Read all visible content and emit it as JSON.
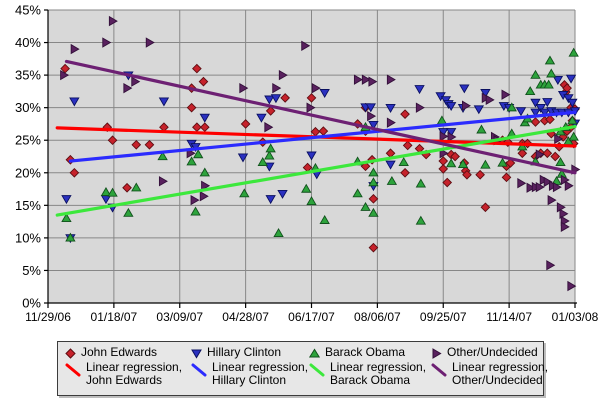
{
  "chart": {
    "plot_bg": "#d8d8d8",
    "grid_color": "#878787",
    "axis_color": "#000000",
    "label_color": "#000000"
  },
  "chart_data": {
    "type": "scatter",
    "title": "",
    "subtitle": "",
    "x_axis": {
      "label": "",
      "unit": "days since 11/29/06",
      "tick_days": [
        0,
        50,
        100,
        150,
        200,
        250,
        300,
        350,
        400
      ],
      "tick_labels": [
        "11/29/06",
        "01/18/07",
        "03/09/07",
        "04/28/07",
        "06/17/07",
        "08/06/07",
        "09/25/07",
        "11/14/07",
        "01/03/08"
      ]
    },
    "y_axis": {
      "label": "",
      "min": 0,
      "max": 45,
      "step": 5,
      "tick_labels": [
        "0%",
        "5%",
        "10%",
        "15%",
        "20%",
        "25%",
        "30%",
        "35%",
        "40%",
        "45%"
      ]
    },
    "grid": true,
    "legend_position": "bottom",
    "series": [
      {
        "name": "John Edwards",
        "marker": "diamond",
        "marker_color": "#c6222b",
        "marker_edge": "#5e0d12",
        "points": [
          [
            13,
            36
          ],
          [
            17,
            22
          ],
          [
            20,
            20
          ],
          [
            45,
            27
          ],
          [
            49,
            25
          ],
          [
            60,
            17.7
          ],
          [
            67,
            24.3
          ],
          [
            77,
            24.3
          ],
          [
            88,
            27
          ],
          [
            109,
            33
          ],
          [
            109,
            30
          ],
          [
            113,
            36
          ],
          [
            113,
            27
          ],
          [
            118,
            34
          ],
          [
            119,
            27
          ],
          [
            150,
            27.5
          ],
          [
            163,
            24.7
          ],
          [
            169,
            29.5
          ],
          [
            180,
            31.5
          ],
          [
            197,
            20.8
          ],
          [
            200,
            31.5
          ],
          [
            203,
            26.3
          ],
          [
            209,
            26.4
          ],
          [
            235,
            27.5
          ],
          [
            241,
            30
          ],
          [
            241,
            26.4
          ],
          [
            241,
            21
          ],
          [
            246,
            22
          ],
          [
            247,
            16
          ],
          [
            247,
            8.5
          ],
          [
            260,
            23
          ],
          [
            271,
            29
          ],
          [
            271,
            20
          ],
          [
            273,
            24.2
          ],
          [
            282,
            23.7
          ],
          [
            287,
            22.8
          ],
          [
            300,
            21.8
          ],
          [
            300,
            20.6
          ],
          [
            303,
            18.5
          ],
          [
            306,
            22.8
          ],
          [
            309,
            22.5
          ],
          [
            316,
            21.5
          ],
          [
            317,
            20.3
          ],
          [
            318,
            19.7
          ],
          [
            328,
            19.7
          ],
          [
            332,
            14.7
          ],
          [
            345,
            25
          ],
          [
            348,
            21
          ],
          [
            348,
            19.3
          ],
          [
            349,
            24.7
          ],
          [
            351,
            21.5
          ],
          [
            360,
            24.5
          ],
          [
            360,
            23
          ],
          [
            364,
            24.5
          ],
          [
            370,
            22.5
          ],
          [
            370,
            27.8
          ],
          [
            374,
            23
          ],
          [
            377,
            28
          ],
          [
            379,
            23
          ],
          [
            381,
            28.2
          ],
          [
            382,
            26
          ],
          [
            385,
            22.5
          ],
          [
            388,
            24
          ],
          [
            391,
            25.5
          ],
          [
            392,
            33.5
          ],
          [
            393,
            32.4
          ],
          [
            394,
            33
          ],
          [
            394,
            26.4
          ],
          [
            397,
            30
          ],
          [
            397,
            27
          ],
          [
            398,
            28
          ],
          [
            399,
            24.5
          ],
          [
            400,
            29.8
          ]
        ]
      },
      {
        "name": "Hillary Clinton",
        "marker": "tri_down",
        "marker_color": "#2a30c0",
        "marker_edge": "#0a1060",
        "points": [
          [
            14,
            16
          ],
          [
            17,
            10
          ],
          [
            20,
            31
          ],
          [
            44,
            16
          ],
          [
            49,
            14.7
          ],
          [
            61,
            35
          ],
          [
            88,
            31
          ],
          [
            109,
            24.5
          ],
          [
            112,
            24
          ],
          [
            119,
            28.5
          ],
          [
            148,
            22.4
          ],
          [
            162,
            28.5
          ],
          [
            168,
            31.3
          ],
          [
            168,
            21
          ],
          [
            169,
            16
          ],
          [
            173,
            31.5
          ],
          [
            178,
            16.8
          ],
          [
            200,
            22.7
          ],
          [
            204,
            19.8
          ],
          [
            210,
            32.3
          ],
          [
            241,
            30.1
          ],
          [
            245,
            30.1
          ],
          [
            247,
            27.4
          ],
          [
            247,
            18
          ],
          [
            260,
            30
          ],
          [
            260,
            21.3
          ],
          [
            282,
            32.9
          ],
          [
            298,
            31.8
          ],
          [
            300,
            26.3
          ],
          [
            302,
            31.2
          ],
          [
            304,
            30.6
          ],
          [
            306,
            30.3
          ],
          [
            306,
            26.3
          ],
          [
            315,
            30
          ],
          [
            316,
            33
          ],
          [
            327,
            29.8
          ],
          [
            332,
            32.3
          ],
          [
            346,
            30.3
          ],
          [
            350,
            30
          ],
          [
            359,
            29.5
          ],
          [
            370,
            30.8
          ],
          [
            370,
            29.3
          ],
          [
            374,
            30
          ],
          [
            377,
            29.3
          ],
          [
            379,
            30.9
          ],
          [
            382,
            29.5
          ],
          [
            386,
            29.3
          ],
          [
            387,
            34.3
          ],
          [
            390,
            29.3
          ],
          [
            391,
            32
          ],
          [
            395,
            31.5
          ],
          [
            395,
            29.3
          ],
          [
            397,
            34.5
          ],
          [
            398,
            30.8
          ],
          [
            400,
            29.5
          ],
          [
            400,
            27.6
          ]
        ]
      },
      {
        "name": "Barack Obama",
        "marker": "tri_up",
        "marker_color": "#2da33c",
        "marker_edge": "#11511c",
        "points": [
          [
            14,
            13
          ],
          [
            17,
            10
          ],
          [
            44,
            17
          ],
          [
            49,
            16.9
          ],
          [
            61,
            13.8
          ],
          [
            67,
            17.7
          ],
          [
            87,
            22.5
          ],
          [
            109,
            21.7
          ],
          [
            112,
            14
          ],
          [
            114,
            22.8
          ],
          [
            119,
            20
          ],
          [
            149,
            16.8
          ],
          [
            163,
            21.6
          ],
          [
            168,
            22.6
          ],
          [
            169,
            23.7
          ],
          [
            175,
            10.7
          ],
          [
            196,
            17.5
          ],
          [
            200,
            15.6
          ],
          [
            203,
            20.7
          ],
          [
            210,
            12.7
          ],
          [
            235,
            21.7
          ],
          [
            235,
            16.8
          ],
          [
            241,
            27
          ],
          [
            241,
            14.7
          ],
          [
            247,
            20
          ],
          [
            247,
            18.5
          ],
          [
            247,
            13.8
          ],
          [
            261,
            18.7
          ],
          [
            270,
            21.6
          ],
          [
            283,
            18.3
          ],
          [
            283,
            12.6
          ],
          [
            299,
            28
          ],
          [
            306,
            21.4
          ],
          [
            315,
            21.3
          ],
          [
            329,
            26.6
          ],
          [
            332,
            21.2
          ],
          [
            345,
            21.5
          ],
          [
            352,
            26
          ],
          [
            352,
            30
          ],
          [
            360,
            24
          ],
          [
            362,
            27.7
          ],
          [
            364,
            28.3
          ],
          [
            366,
            32.5
          ],
          [
            370,
            35
          ],
          [
            370,
            21.7
          ],
          [
            374,
            33.5
          ],
          [
            377,
            33.5
          ],
          [
            380,
            33.5
          ],
          [
            381,
            37.2
          ],
          [
            382,
            35.2
          ],
          [
            386,
            18.7
          ],
          [
            389,
            21.6
          ],
          [
            389,
            26.3
          ],
          [
            390,
            19.8
          ],
          [
            393,
            27
          ],
          [
            395,
            24.8
          ],
          [
            398,
            28
          ],
          [
            399,
            38.4
          ],
          [
            399,
            25.5
          ]
        ]
      },
      {
        "name": "Other/Undecided",
        "marker": "tri_right",
        "marker_color": "#59215e",
        "marker_edge": "#33103a",
        "points": [
          [
            12,
            35
          ],
          [
            20,
            39
          ],
          [
            44,
            40
          ],
          [
            49,
            43.3
          ],
          [
            60,
            33
          ],
          [
            66,
            34
          ],
          [
            77,
            40
          ],
          [
            87,
            18.7
          ],
          [
            108,
            23
          ],
          [
            111,
            15.8
          ],
          [
            118,
            16.4
          ],
          [
            119,
            18
          ],
          [
            148,
            33
          ],
          [
            167,
            27
          ],
          [
            173,
            33
          ],
          [
            178,
            35
          ],
          [
            195,
            39.5
          ],
          [
            199,
            30
          ],
          [
            203,
            33
          ],
          [
            235,
            34.3
          ],
          [
            241,
            34.3
          ],
          [
            245,
            28.7
          ],
          [
            246,
            34
          ],
          [
            260,
            34.3
          ],
          [
            260,
            27.7
          ],
          [
            282,
            30
          ],
          [
            300,
            25.6
          ],
          [
            300,
            23
          ],
          [
            306,
            25.5
          ],
          [
            317,
            30.3
          ],
          [
            332,
            31.5
          ],
          [
            335,
            31.2
          ],
          [
            339,
            25.5
          ],
          [
            341,
            25
          ],
          [
            347,
            32
          ],
          [
            359,
            18.4
          ],
          [
            366,
            17.7
          ],
          [
            370,
            17.8
          ],
          [
            373,
            22.8
          ],
          [
            373,
            17.8
          ],
          [
            376,
            18.9
          ],
          [
            379,
            18.6
          ],
          [
            381,
            5.8
          ],
          [
            382,
            15.8
          ],
          [
            383,
            18
          ],
          [
            386,
            17.8
          ],
          [
            387,
            25.2
          ],
          [
            389,
            14.7
          ],
          [
            391,
            13.7
          ],
          [
            392,
            18.9
          ],
          [
            392,
            12.6
          ],
          [
            392,
            11.7
          ],
          [
            395,
            18
          ],
          [
            397,
            2.6
          ],
          [
            400,
            20.5
          ]
        ]
      }
    ],
    "regressions": [
      {
        "name": "Linear regression, John Edwards",
        "color": "#fe0000",
        "from": [
          7,
          26.9
        ],
        "to": [
          400,
          24.1
        ]
      },
      {
        "name": "Linear regression, Hillary Clinton",
        "color": "#2b2bfe",
        "from": [
          17,
          21.8
        ],
        "to": [
          400,
          29.3
        ]
      },
      {
        "name": "Linear regression, Barack Obama",
        "color": "#3ce83c",
        "from": [
          7,
          13.5
        ],
        "to": [
          400,
          27.1
        ]
      },
      {
        "name": "Linear regression, Other/Undecided",
        "color": "#6d2073",
        "from": [
          14,
          37.1
        ],
        "to": [
          400,
          20.0
        ]
      }
    ]
  },
  "legend": {
    "items": [
      {
        "label": "John Edwards"
      },
      {
        "label": "Hillary Clinton"
      },
      {
        "label": "Barack Obama"
      },
      {
        "label": "Other/Undecided"
      },
      {
        "label": "Linear regression,",
        "label2": "John Edwards"
      },
      {
        "label": "Linear regression,",
        "label2": "Hillary Clinton"
      },
      {
        "label": "Linear regression,",
        "label2": "Barack Obama"
      },
      {
        "label": "Linear regression,",
        "label2": "Other/Undecided"
      }
    ]
  }
}
